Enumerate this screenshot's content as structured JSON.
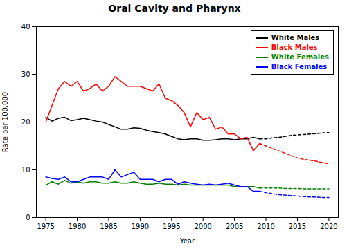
{
  "chart_data": {
    "type": "line",
    "title": "Oral Cavity and Pharynx",
    "xlabel": "Year",
    "ylabel": "Rate per 100,000",
    "xlim": [
      1973.5,
      2021.5
    ],
    "ylim": [
      0,
      40
    ],
    "xticks": [
      1975,
      1980,
      1985,
      1990,
      1995,
      2000,
      2005,
      2010,
      2015,
      2020
    ],
    "yticks": [
      0,
      10,
      20,
      30,
      40
    ],
    "grid": false,
    "legend": "upper right",
    "x": [
      1975,
      1976,
      1977,
      1978,
      1979,
      1980,
      1981,
      1982,
      1983,
      1984,
      1985,
      1986,
      1987,
      1988,
      1989,
      1990,
      1991,
      1992,
      1993,
      1994,
      1995,
      1996,
      1997,
      1998,
      1999,
      2000,
      2001,
      2002,
      2003,
      2004,
      2005,
      2006,
      2007,
      2008,
      2009,
      2010,
      2011,
      2012,
      2013,
      2014,
      2015,
      2016,
      2017,
      2018,
      2019,
      2020
    ],
    "series": [
      {
        "name": "White Males",
        "color": "#000000",
        "line_style": "solid",
        "values": [
          21.0,
          20.2,
          20.8,
          21.0,
          20.3,
          20.5,
          20.8,
          20.5,
          20.2,
          20.0,
          19.5,
          19.0,
          18.5,
          18.5,
          18.8,
          18.7,
          18.3,
          18.0,
          17.8,
          17.5,
          17.0,
          16.5,
          16.3,
          16.5,
          16.5,
          16.2,
          16.2,
          16.3,
          16.5,
          16.5,
          16.3,
          16.5,
          16.5,
          16.8,
          16.5,
          null,
          null,
          null,
          null,
          null,
          null,
          null,
          null,
          null,
          null,
          null
        ]
      },
      {
        "name": "Black Males",
        "color": "#ff0000",
        "line_style": "solid",
        "values": [
          20.0,
          23.5,
          27.0,
          28.5,
          27.5,
          28.5,
          26.5,
          27.0,
          28.0,
          26.5,
          27.5,
          29.5,
          28.5,
          27.5,
          27.5,
          27.5,
          27.0,
          26.5,
          28.0,
          25.0,
          24.5,
          23.5,
          22.0,
          19.0,
          22.0,
          20.5,
          21.0,
          18.5,
          19.0,
          17.5,
          17.5,
          16.5,
          16.8,
          14.0,
          15.5,
          null,
          null,
          null,
          null,
          null,
          null,
          null,
          null,
          null,
          null,
          null
        ]
      },
      {
        "name": "White Females",
        "color": "#008000",
        "line_style": "solid",
        "values": [
          6.8,
          7.5,
          7.0,
          7.8,
          7.2,
          7.5,
          7.2,
          7.5,
          7.5,
          7.2,
          7.2,
          7.5,
          7.2,
          7.2,
          7.5,
          7.2,
          7.0,
          7.0,
          7.2,
          7.0,
          7.0,
          6.8,
          7.0,
          6.8,
          6.8,
          6.8,
          6.8,
          6.8,
          6.8,
          6.8,
          6.5,
          6.5,
          6.5,
          6.5,
          6.2,
          null,
          null,
          null,
          null,
          null,
          null,
          null,
          null,
          null,
          null,
          null
        ]
      },
      {
        "name": "Black Females",
        "color": "#0000ff",
        "line_style": "solid",
        "values": [
          8.5,
          8.2,
          8.0,
          8.5,
          7.5,
          7.5,
          8.0,
          8.5,
          8.5,
          8.5,
          8.0,
          10.0,
          8.5,
          9.0,
          9.5,
          8.0,
          8.0,
          8.0,
          7.5,
          8.0,
          8.0,
          7.0,
          7.5,
          7.2,
          7.0,
          6.8,
          7.0,
          6.8,
          7.0,
          7.2,
          6.8,
          6.5,
          6.5,
          5.5,
          5.5,
          null,
          null,
          null,
          null,
          null,
          null,
          null,
          null,
          null,
          null,
          null
        ]
      },
      {
        "color": "#000000",
        "line_style": "dashed",
        "values": [
          null,
          null,
          null,
          null,
          null,
          null,
          null,
          null,
          null,
          null,
          null,
          null,
          null,
          null,
          null,
          null,
          null,
          null,
          null,
          null,
          null,
          null,
          null,
          null,
          null,
          null,
          null,
          null,
          null,
          null,
          null,
          null,
          null,
          null,
          16.5,
          16.5,
          16.7,
          16.8,
          17.0,
          17.2,
          17.3,
          17.4,
          17.5,
          17.6,
          17.7,
          17.8
        ]
      },
      {
        "color": "#ff0000",
        "line_style": "dashed",
        "values": [
          null,
          null,
          null,
          null,
          null,
          null,
          null,
          null,
          null,
          null,
          null,
          null,
          null,
          null,
          null,
          null,
          null,
          null,
          null,
          null,
          null,
          null,
          null,
          null,
          null,
          null,
          null,
          null,
          null,
          null,
          null,
          null,
          null,
          null,
          15.5,
          15.0,
          14.5,
          14.0,
          13.5,
          13.0,
          12.5,
          12.2,
          12.0,
          11.8,
          11.5,
          11.3
        ]
      },
      {
        "color": "#008000",
        "line_style": "dashed",
        "values": [
          null,
          null,
          null,
          null,
          null,
          null,
          null,
          null,
          null,
          null,
          null,
          null,
          null,
          null,
          null,
          null,
          null,
          null,
          null,
          null,
          null,
          null,
          null,
          null,
          null,
          null,
          null,
          null,
          null,
          null,
          null,
          null,
          null,
          null,
          6.2,
          6.2,
          6.2,
          6.2,
          6.1,
          6.1,
          6.1,
          6.0,
          6.0,
          6.0,
          6.0,
          6.0
        ]
      },
      {
        "color": "#0000ff",
        "line_style": "dashed",
        "values": [
          null,
          null,
          null,
          null,
          null,
          null,
          null,
          null,
          null,
          null,
          null,
          null,
          null,
          null,
          null,
          null,
          null,
          null,
          null,
          null,
          null,
          null,
          null,
          null,
          null,
          null,
          null,
          null,
          null,
          null,
          null,
          null,
          null,
          null,
          5.5,
          5.2,
          5.0,
          4.8,
          4.7,
          4.6,
          4.5,
          4.4,
          4.3,
          4.3,
          4.2,
          4.2
        ]
      }
    ]
  }
}
